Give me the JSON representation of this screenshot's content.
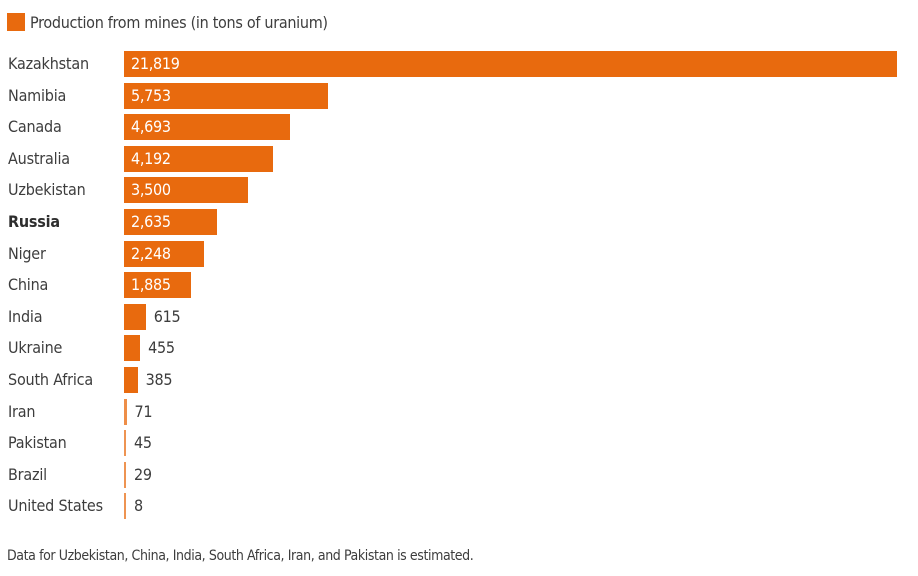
{
  "legend": {
    "label": "Production from mines (in tons of uranium)",
    "color": "#e86a0e"
  },
  "footnote": "Data for Uzbekistan, China, India, South Africa, Iran, and Pakistan is estimated.",
  "rows": [
    {
      "country": "Kazakhstan",
      "value": 21819,
      "display": "21,819",
      "bold": false
    },
    {
      "country": "Namibia",
      "value": 5753,
      "display": "5,753",
      "bold": false
    },
    {
      "country": "Canada",
      "value": 4693,
      "display": "4,693",
      "bold": false
    },
    {
      "country": "Australia",
      "value": 4192,
      "display": "4,192",
      "bold": false
    },
    {
      "country": "Uzbekistan",
      "value": 3500,
      "display": "3,500",
      "bold": false
    },
    {
      "country": "Russia",
      "value": 2635,
      "display": "2,635",
      "bold": true
    },
    {
      "country": "Niger",
      "value": 2248,
      "display": "2,248",
      "bold": false
    },
    {
      "country": "China",
      "value": 1885,
      "display": "1,885",
      "bold": false
    },
    {
      "country": "India",
      "value": 615,
      "display": "615",
      "bold": false
    },
    {
      "country": "Ukraine",
      "value": 455,
      "display": "455",
      "bold": false
    },
    {
      "country": "South Africa",
      "value": 385,
      "display": "385",
      "bold": false
    },
    {
      "country": "Iran",
      "value": 71,
      "display": "71",
      "bold": false
    },
    {
      "country": "Pakistan",
      "value": 45,
      "display": "45",
      "bold": false
    },
    {
      "country": "Brazil",
      "value": 29,
      "display": "29",
      "bold": false
    },
    {
      "country": "United States",
      "value": 8,
      "display": "8",
      "bold": false
    }
  ],
  "chart_data": {
    "type": "bar",
    "orientation": "horizontal",
    "title": "",
    "xlabel": "",
    "ylabel": "",
    "legend": [
      "Production from mines (in tons of uranium)"
    ],
    "legend_position": "top-left",
    "grid": false,
    "categories": [
      "Kazakhstan",
      "Namibia",
      "Canada",
      "Australia",
      "Uzbekistan",
      "Russia",
      "Niger",
      "China",
      "India",
      "Ukraine",
      "South Africa",
      "Iran",
      "Pakistan",
      "Brazil",
      "United States"
    ],
    "series": [
      {
        "name": "Production from mines (in tons of uranium)",
        "color": "#e86a0e",
        "values": [
          21819,
          5753,
          4693,
          4192,
          3500,
          2635,
          2248,
          1885,
          615,
          455,
          385,
          71,
          45,
          29,
          8
        ]
      }
    ],
    "xlim": [
      0,
      21819
    ],
    "highlighted_category": "Russia",
    "annotations": [
      "Data for Uzbekistan, China, India, South Africa, Iran, and Pakistan is estimated."
    ]
  }
}
